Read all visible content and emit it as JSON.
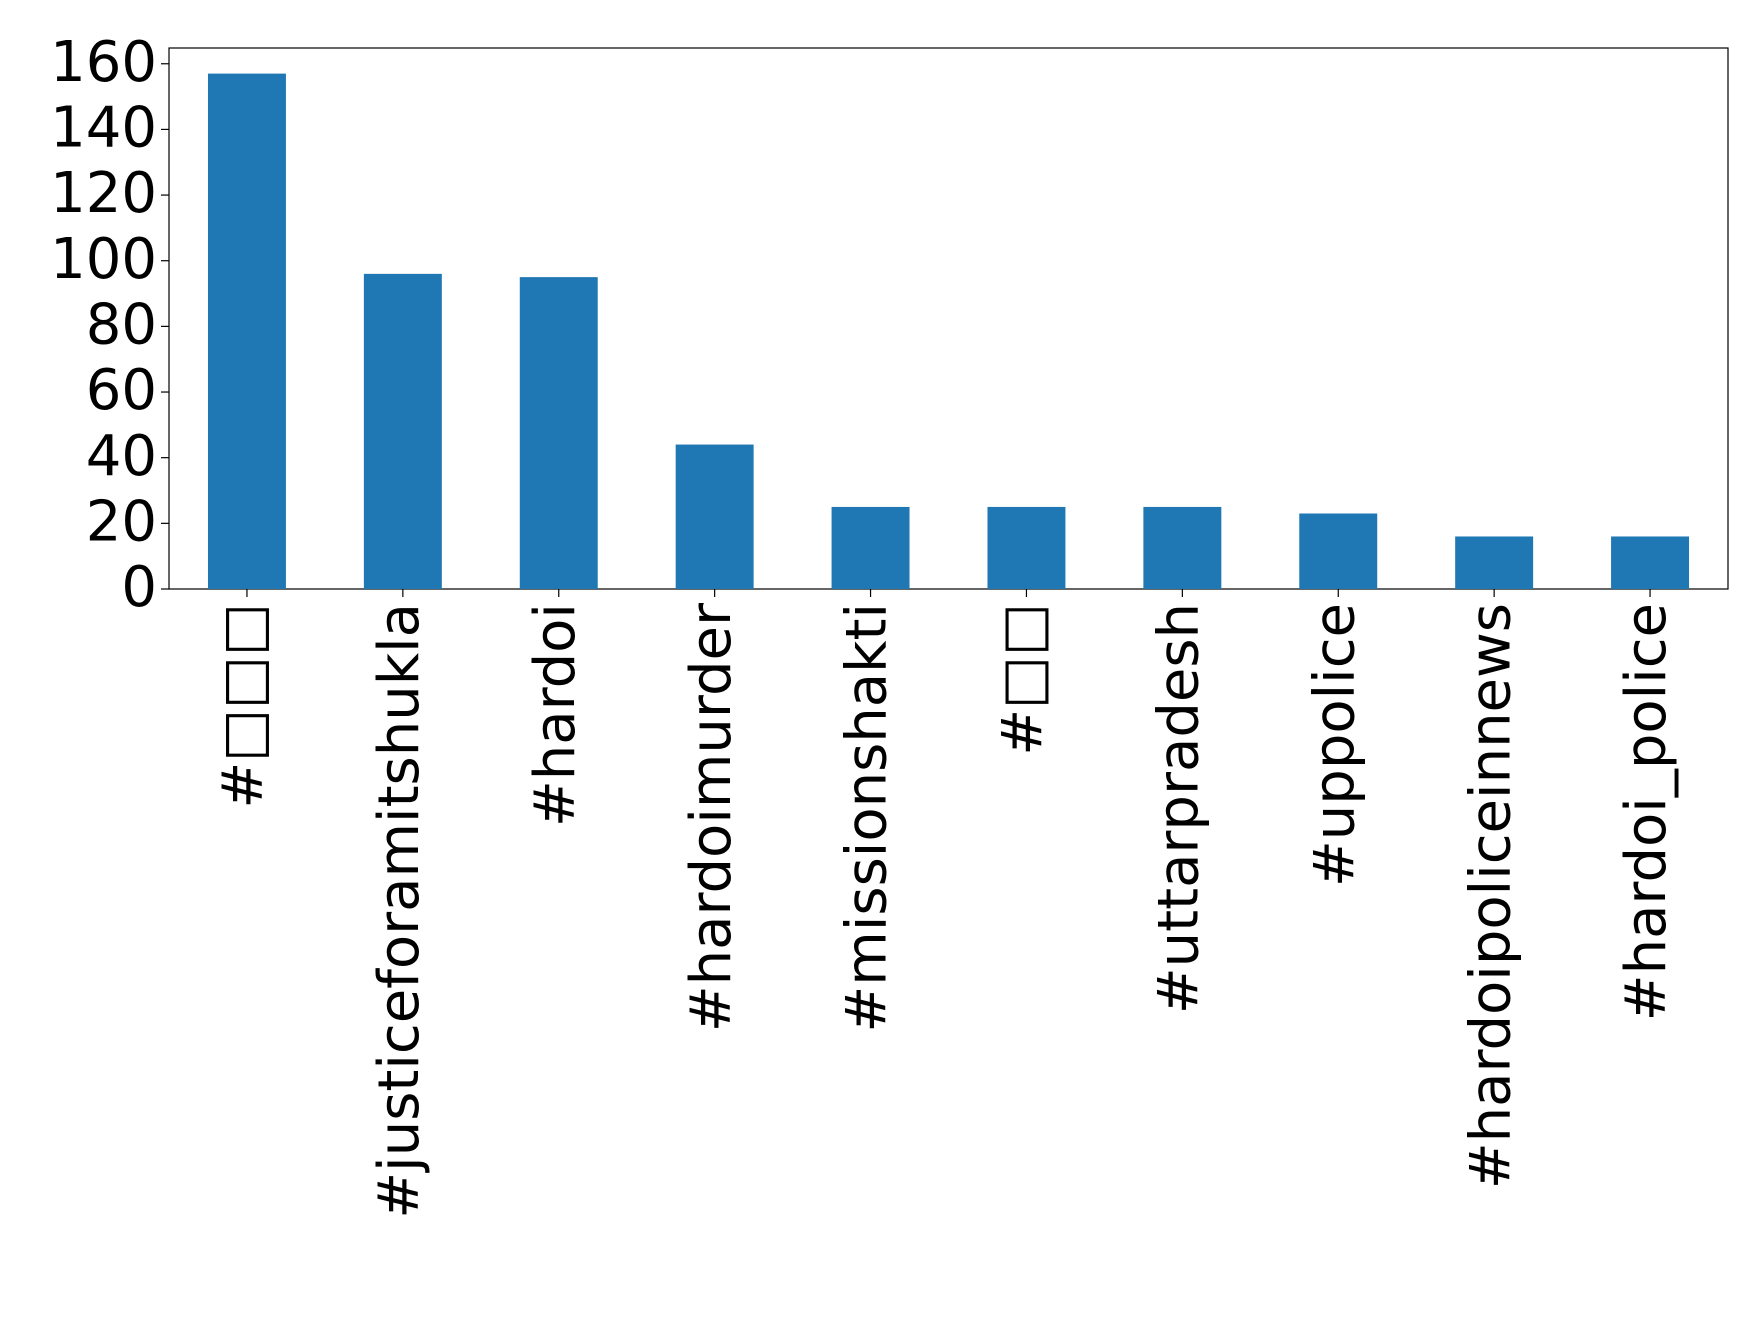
{
  "chart_data": {
    "type": "bar",
    "categories": [
      "#□□□",
      "#justiceforamitshukla",
      "#hardoi",
      "#hardoimurder",
      "#missionshakti",
      "#□□",
      "#uttarpradesh",
      "#uppolice",
      "#hardoipoliceinnews",
      "#hardoi_police"
    ],
    "values": [
      157,
      96,
      95,
      44,
      25,
      25,
      25,
      23,
      16,
      16
    ],
    "color": "#1f77b4",
    "ylim": [
      0,
      164.8
    ],
    "yticks": [
      0,
      20,
      40,
      60,
      80,
      100,
      120,
      140,
      160
    ],
    "grid": false
  }
}
